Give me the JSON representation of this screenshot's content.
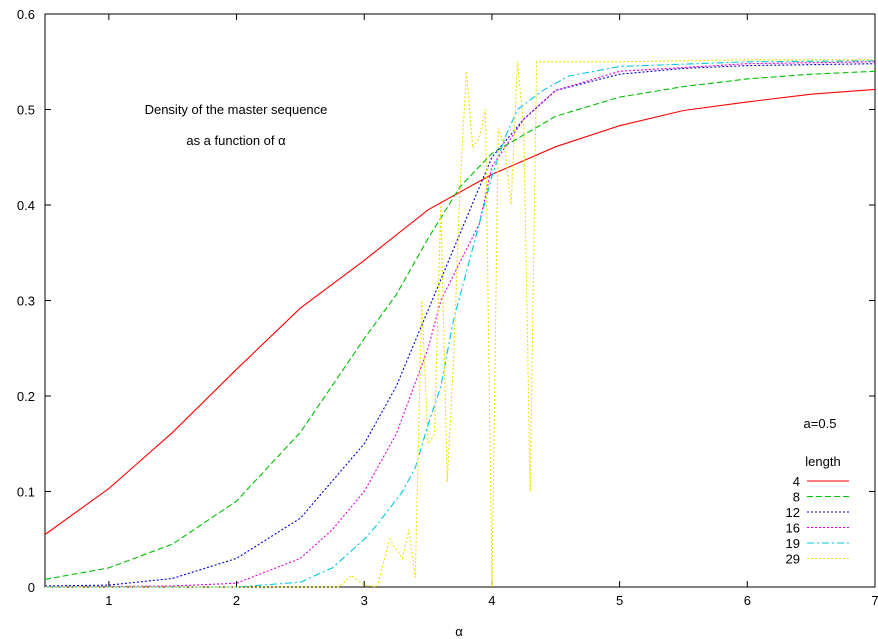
{
  "chart_data": {
    "type": "line",
    "title_lines": [
      "Density of the master sequence",
      "as a function of α"
    ],
    "xlabel": "α",
    "ylabel": "",
    "xlim": [
      0.5,
      7
    ],
    "ylim": [
      0,
      0.6
    ],
    "xticks": [
      1,
      2,
      3,
      4,
      5,
      6,
      7
    ],
    "yticks": [
      0,
      0.1,
      0.2,
      0.3,
      0.4,
      0.5,
      0.6
    ],
    "xtick_labels": [
      "1",
      "2",
      "3",
      "4",
      "5",
      "6",
      "7"
    ],
    "ytick_labels": [
      "0",
      "0.1",
      "0.2",
      "0.3",
      "0.4",
      "0.5",
      "0.6"
    ],
    "grid": false,
    "parameter_label": "a=0.5",
    "legend": {
      "title": "length",
      "placement": "bottom-right"
    },
    "series": [
      {
        "name": "4",
        "color": "#ff0000",
        "dash": "solid",
        "points": [
          [
            0.5,
            0.055
          ],
          [
            1,
            0.103
          ],
          [
            1.5,
            0.162
          ],
          [
            2,
            0.228
          ],
          [
            2.5,
            0.292
          ],
          [
            3,
            0.342
          ],
          [
            3.5,
            0.395
          ],
          [
            4,
            0.432
          ],
          [
            4.5,
            0.461
          ],
          [
            5,
            0.483
          ],
          [
            5.5,
            0.499
          ],
          [
            6,
            0.508
          ],
          [
            6.5,
            0.516
          ],
          [
            7,
            0.521
          ]
        ]
      },
      {
        "name": "8",
        "color": "#00c000",
        "dash": "dashed",
        "points": [
          [
            0.5,
            0.008
          ],
          [
            1,
            0.02
          ],
          [
            1.5,
            0.045
          ],
          [
            2,
            0.09
          ],
          [
            2.5,
            0.162
          ],
          [
            3,
            0.26
          ],
          [
            3.25,
            0.306
          ],
          [
            3.5,
            0.365
          ],
          [
            3.75,
            0.419
          ],
          [
            4,
            0.454
          ],
          [
            4.5,
            0.493
          ],
          [
            5,
            0.513
          ],
          [
            5.5,
            0.524
          ],
          [
            6,
            0.532
          ],
          [
            6.5,
            0.537
          ],
          [
            7,
            0.54
          ]
        ]
      },
      {
        "name": "12",
        "color": "#0000d0",
        "dash": "dotted",
        "points": [
          [
            0.5,
            0.001
          ],
          [
            1,
            0.002
          ],
          [
            1.5,
            0.009
          ],
          [
            2,
            0.03
          ],
          [
            2.5,
            0.072
          ],
          [
            3,
            0.15
          ],
          [
            3.25,
            0.21
          ],
          [
            3.5,
            0.29
          ],
          [
            3.75,
            0.37
          ],
          [
            4,
            0.45
          ],
          [
            4.25,
            0.49
          ],
          [
            4.5,
            0.52
          ],
          [
            5,
            0.537
          ],
          [
            5.5,
            0.543
          ],
          [
            6,
            0.546
          ],
          [
            7,
            0.548
          ]
        ]
      },
      {
        "name": "16",
        "color": "#e000e0",
        "dash": "dotted",
        "points": [
          [
            0.5,
            0.0
          ],
          [
            1.5,
            0.001
          ],
          [
            2,
            0.004
          ],
          [
            2.5,
            0.03
          ],
          [
            2.75,
            0.06
          ],
          [
            3,
            0.1
          ],
          [
            3.25,
            0.16
          ],
          [
            3.5,
            0.25
          ],
          [
            3.6,
            0.3
          ],
          [
            3.75,
            0.34
          ],
          [
            3.9,
            0.38
          ],
          [
            4,
            0.44
          ],
          [
            4.25,
            0.49
          ],
          [
            4.5,
            0.52
          ],
          [
            5,
            0.54
          ],
          [
            6,
            0.548
          ],
          [
            7,
            0.55
          ]
        ]
      },
      {
        "name": "19",
        "color": "#00c8e0",
        "dash": "dashdot",
        "points": [
          [
            0.5,
            0.0
          ],
          [
            2,
            0.0
          ],
          [
            2.5,
            0.005
          ],
          [
            2.75,
            0.02
          ],
          [
            3,
            0.05
          ],
          [
            3.1,
            0.065
          ],
          [
            3.3,
            0.1
          ],
          [
            3.4,
            0.125
          ],
          [
            3.5,
            0.17
          ],
          [
            3.6,
            0.21
          ],
          [
            3.7,
            0.28
          ],
          [
            3.8,
            0.33
          ],
          [
            3.9,
            0.38
          ],
          [
            4,
            0.43
          ],
          [
            4.1,
            0.47
          ],
          [
            4.2,
            0.5
          ],
          [
            4.4,
            0.52
          ],
          [
            4.6,
            0.535
          ],
          [
            5,
            0.545
          ],
          [
            6,
            0.55
          ],
          [
            7,
            0.551
          ]
        ]
      },
      {
        "name": "29",
        "color": "#f0e000",
        "dash": "dotted",
        "points": [
          [
            0.5,
            0.0
          ],
          [
            2.8,
            0.0
          ],
          [
            2.9,
            0.012
          ],
          [
            3,
            0.002
          ],
          [
            3.1,
            0.0
          ],
          [
            3.2,
            0.05
          ],
          [
            3.3,
            0.03
          ],
          [
            3.35,
            0.06
          ],
          [
            3.4,
            0.01
          ],
          [
            3.45,
            0.3
          ],
          [
            3.5,
            0.15
          ],
          [
            3.55,
            0.16
          ],
          [
            3.6,
            0.4
          ],
          [
            3.65,
            0.11
          ],
          [
            3.7,
            0.24
          ],
          [
            3.75,
            0.42
          ],
          [
            3.8,
            0.54
          ],
          [
            3.85,
            0.46
          ],
          [
            3.9,
            0.47
          ],
          [
            3.95,
            0.5
          ],
          [
            4.0,
            0.0
          ],
          [
            4.05,
            0.48
          ],
          [
            4.1,
            0.46
          ],
          [
            4.15,
            0.4
          ],
          [
            4.2,
            0.55
          ],
          [
            4.25,
            0.48
          ],
          [
            4.3,
            0.1
          ],
          [
            4.35,
            0.55
          ],
          [
            5,
            0.55
          ],
          [
            6,
            0.552
          ],
          [
            7,
            0.552
          ]
        ]
      }
    ]
  }
}
